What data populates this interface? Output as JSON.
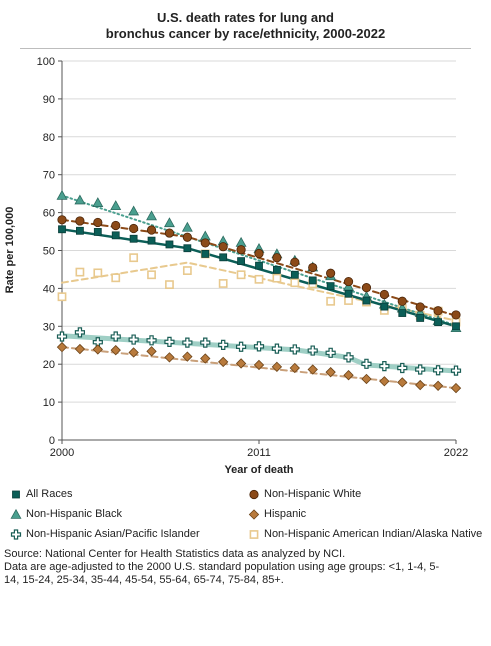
{
  "title_lines": [
    "U.S. death rates for lung and",
    "bronchus cancer by race/ethnicity, 2000-2022"
  ],
  "source_lines": [
    "Source: National Center for Health Statistics data as analyzed by NCI.",
    "Data are age-adjusted to the 2000 U.S. standard population using age groups: <1, 1-4, 5-",
    "14, 15-24, 25-34, 35-44, 45-54, 55-64, 65-74, 75-84, 85+."
  ],
  "chart_data": {
    "type": "line",
    "title": "U.S. death rates for lung and bronchus cancer by race/ethnicity, 2000-2022",
    "xlabel": "Year of death",
    "ylabel": "Rate per 100,000",
    "xlim": [
      2000,
      2022
    ],
    "ylim": [
      0,
      100
    ],
    "x_ticks": [
      2000,
      2011,
      2022
    ],
    "y_ticks": [
      0,
      10,
      20,
      30,
      40,
      50,
      60,
      70,
      80,
      90,
      100
    ],
    "grid": "horizontal",
    "legend": "bottom",
    "x": [
      2000,
      2001,
      2002,
      2003,
      2004,
      2005,
      2006,
      2007,
      2008,
      2009,
      2010,
      2011,
      2012,
      2013,
      2014,
      2015,
      2016,
      2017,
      2018,
      2019,
      2020,
      2021,
      2022
    ],
    "series": [
      {
        "name": "All Races",
        "marker": "square",
        "color": "#0b5e57",
        "trend_color": "#0b5e57",
        "trend_style": "solid",
        "values": [
          55.6,
          55.2,
          54.9,
          54.0,
          53.1,
          52.6,
          51.6,
          50.6,
          49.1,
          48.2,
          47.2,
          46.0,
          44.9,
          43.6,
          42.1,
          40.6,
          38.6,
          36.8,
          35.2,
          33.5,
          32.2,
          31.1,
          30.0
        ],
        "trend": [
          [
            2000,
            55.6
          ],
          [
            2007,
            50.6
          ],
          [
            2022,
            30.0
          ]
        ]
      },
      {
        "name": "Non-Hispanic White",
        "marker": "circle",
        "color": "#8b4a18",
        "trend_color": "#8b4a18",
        "trend_style": "dashed",
        "values": [
          58.1,
          57.8,
          57.4,
          56.6,
          55.8,
          55.4,
          54.6,
          53.5,
          52.0,
          51.0,
          50.2,
          49.2,
          48.1,
          46.9,
          45.5,
          44.0,
          41.8,
          40.2,
          38.4,
          36.6,
          35.1,
          34.1,
          33.0
        ],
        "trend": [
          [
            2000,
            58.1
          ],
          [
            2007,
            53.6
          ],
          [
            2022,
            32.8
          ]
        ]
      },
      {
        "name": "Non-Hispanic Black",
        "marker": "triangle",
        "color": "#4a9f8f",
        "trend_color": "#4a9f8f",
        "trend_style": "dotted",
        "values": [
          64.5,
          63.3,
          62.6,
          61.8,
          60.4,
          59.1,
          57.3,
          56.1,
          53.8,
          52.5,
          52.1,
          50.5,
          49.1,
          47.4,
          45.6,
          43.3,
          40.5,
          37.9,
          35.8,
          34.8,
          33.6,
          31.5,
          29.6
        ],
        "trend": [
          [
            2000,
            64.5
          ],
          [
            2022,
            30.2
          ]
        ]
      },
      {
        "name": "Hispanic",
        "marker": "diamond",
        "color": "#b87a3c",
        "trend_color": "#c9a07a",
        "trend_style": "dashed",
        "values": [
          24.5,
          24.0,
          23.9,
          23.7,
          23.1,
          23.4,
          21.8,
          22.0,
          21.5,
          20.6,
          20.2,
          19.8,
          19.3,
          19.0,
          18.6,
          17.9,
          17.1,
          16.1,
          15.5,
          15.2,
          14.5,
          14.3,
          13.7
        ],
        "trend": [
          [
            2000,
            24.5
          ],
          [
            2022,
            13.7
          ]
        ]
      },
      {
        "name": "Non-Hispanic Asian/Pacific Islander",
        "marker": "cross",
        "color": "#1a5e56",
        "trend_color": "#9fcfc5",
        "trend_style": "solid",
        "values": [
          27.3,
          28.4,
          25.8,
          27.3,
          26.5,
          26.3,
          25.9,
          25.7,
          25.7,
          25.1,
          24.6,
          24.7,
          24.1,
          23.9,
          23.6,
          23.0,
          21.8,
          20.1,
          19.5,
          19.0,
          18.6,
          18.4,
          18.3
        ],
        "trend": [
          [
            2000,
            27.5
          ],
          [
            2013,
            23.8
          ],
          [
            2016,
            21.8
          ],
          [
            2017,
            19.8
          ],
          [
            2022,
            18.2
          ]
        ]
      },
      {
        "name": "Non-Hispanic American Indian/Alaska Native",
        "marker": "open-square",
        "color": "#e8c98e",
        "trend_color": "#e8c98e",
        "trend_style": "dashed",
        "values": [
          37.8,
          44.3,
          44.1,
          42.8,
          48.1,
          43.6,
          41.0,
          44.7,
          49.1,
          41.3,
          43.6,
          42.4,
          42.7,
          41.5,
          41.2,
          36.6,
          36.8,
          36.4,
          34.2,
          34.7,
          32.9,
          34.0,
          31.1
        ],
        "trend": [
          [
            2000,
            41.5
          ],
          [
            2007,
            46.8
          ],
          [
            2022,
            31.5
          ]
        ]
      }
    ]
  }
}
